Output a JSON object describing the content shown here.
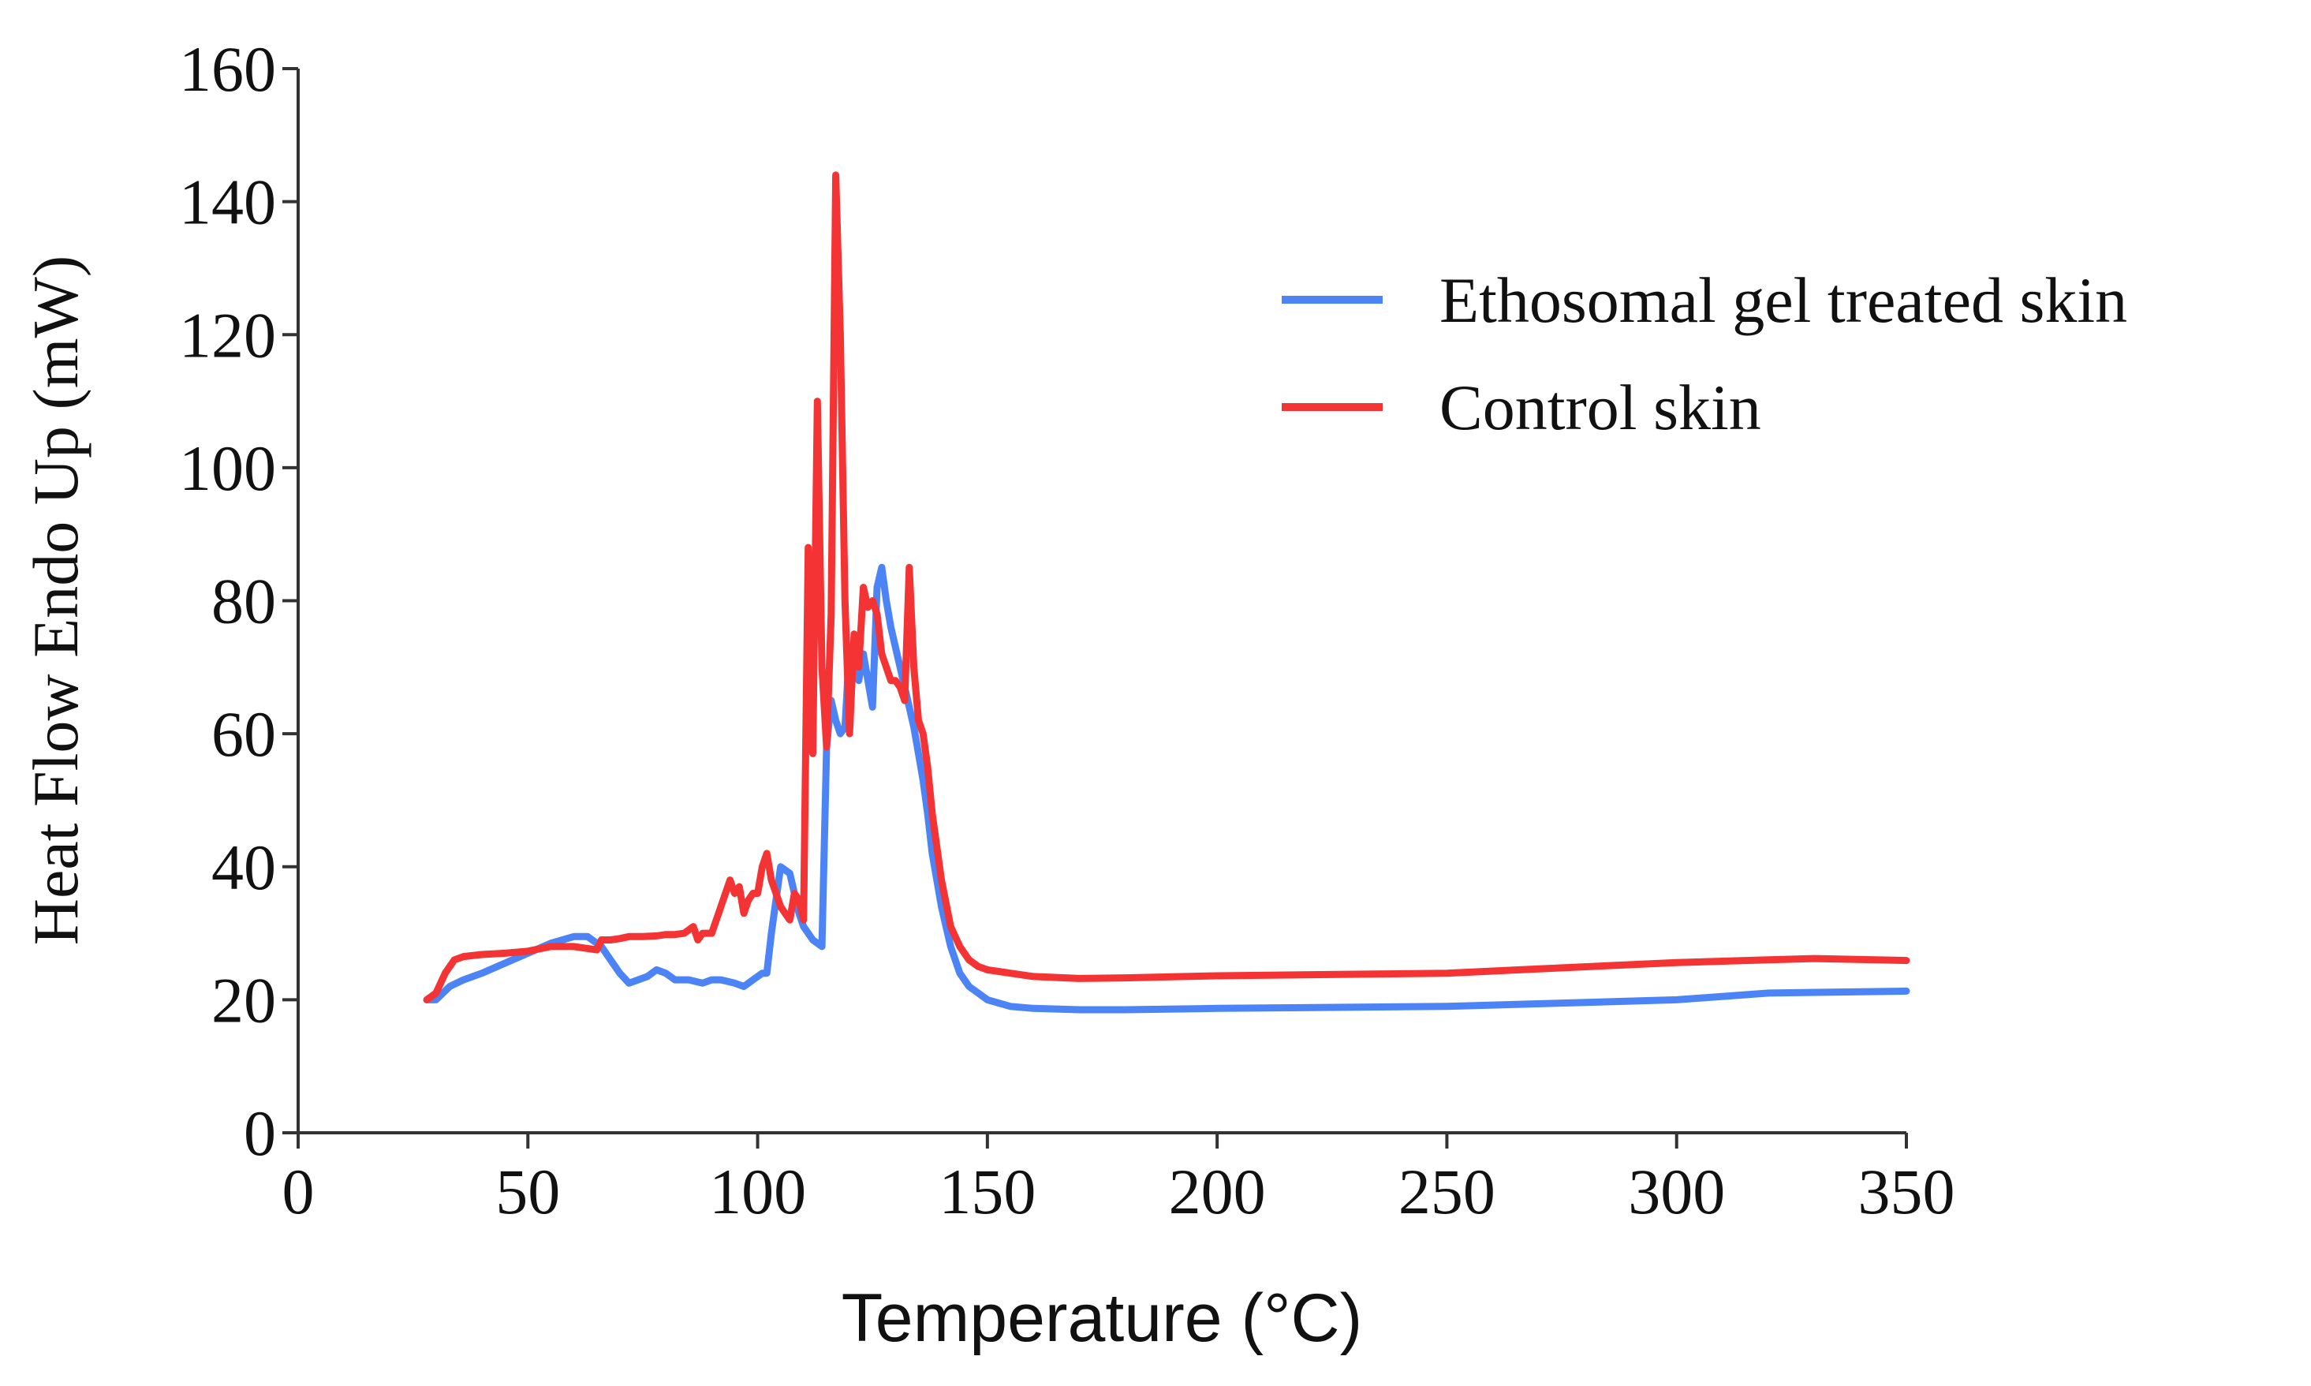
{
  "chart_data": {
    "type": "line",
    "title": "",
    "xlabel": "Temperature (°C)",
    "ylabel": "Heat Flow Endo Up (mW)",
    "xlim": [
      0,
      350
    ],
    "ylim": [
      0,
      160
    ],
    "xticks": [
      0,
      50,
      100,
      150,
      200,
      250,
      300,
      350
    ],
    "yticks": [
      0,
      20,
      40,
      60,
      80,
      100,
      120,
      140,
      160
    ],
    "grid": false,
    "legend_position": "top-right",
    "series": [
      {
        "name": "Ethosomal gel treated skin",
        "color": "#4d84f5",
        "x": [
          28,
          30,
          33,
          36,
          40,
          45,
          50,
          55,
          60,
          63,
          66,
          68,
          70,
          72,
          74,
          76,
          78,
          80,
          82,
          85,
          88,
          90,
          92,
          95,
          97,
          99,
          101,
          102,
          103,
          105,
          107,
          109,
          110,
          111,
          112,
          113,
          114,
          115,
          116,
          117,
          118,
          119,
          120,
          121,
          122,
          123,
          124,
          125,
          126,
          127,
          128,
          129,
          130,
          131,
          132,
          133,
          134,
          135,
          136,
          137,
          138,
          140,
          142,
          144,
          146,
          148,
          150,
          155,
          160,
          170,
          180,
          200,
          250,
          300,
          320,
          350
        ],
        "y": [
          20,
          20,
          22,
          23,
          24,
          25.5,
          27,
          28.5,
          29.5,
          29.5,
          28,
          26,
          24,
          22.5,
          23,
          23.5,
          24.5,
          24,
          23,
          23,
          22.5,
          23,
          23,
          22.5,
          22,
          23,
          24,
          24,
          30,
          40,
          39,
          33,
          31,
          30,
          29,
          28.5,
          28,
          58,
          65,
          62,
          60,
          61,
          73,
          70,
          68,
          72,
          68,
          64,
          82,
          85,
          80,
          76,
          73,
          70,
          67,
          64,
          61,
          57,
          53,
          48,
          42,
          34,
          28,
          24,
          22,
          21,
          20,
          19,
          18.7,
          18.5,
          18.5,
          18.7,
          19,
          20,
          21,
          21.3
        ]
      },
      {
        "name": "Control skin",
        "color": "#f43434",
        "x": [
          28,
          30,
          32,
          34,
          36,
          40,
          45,
          50,
          55,
          60,
          65,
          66,
          68,
          70,
          72,
          75,
          78,
          80,
          82,
          84,
          86,
          87,
          88,
          90,
          92,
          94,
          95,
          96,
          97,
          98,
          99,
          100,
          101,
          102,
          103,
          104,
          105,
          106,
          107,
          108,
          109,
          110,
          111,
          112,
          113,
          114,
          115,
          116,
          117,
          118,
          119,
          120,
          121,
          122,
          123,
          124,
          125,
          126,
          127,
          128,
          129,
          130,
          131,
          132,
          133,
          134,
          135,
          136,
          137,
          138,
          140,
          142,
          144,
          146,
          148,
          150,
          155,
          160,
          170,
          180,
          200,
          250,
          300,
          320,
          330,
          350
        ],
        "y": [
          20,
          21,
          24,
          26,
          26.5,
          26.8,
          27,
          27.3,
          28,
          28,
          27.5,
          29,
          29,
          29.2,
          29.5,
          29.5,
          29.6,
          29.8,
          29.8,
          30,
          31,
          29,
          30,
          30,
          34,
          38,
          36,
          37,
          33,
          35,
          36,
          36,
          40,
          42,
          38,
          36,
          34,
          33,
          32,
          36,
          35,
          32,
          88,
          57,
          110,
          70,
          58,
          78,
          144,
          120,
          80,
          60,
          75,
          70,
          82,
          79,
          80,
          78,
          72,
          70,
          68,
          68,
          67,
          65,
          85,
          70,
          62,
          60,
          55,
          48,
          38,
          31,
          28,
          26,
          25,
          24.5,
          24,
          23.5,
          23.2,
          23.3,
          23.6,
          24,
          25.6,
          26,
          26.2,
          25.9
        ]
      }
    ]
  }
}
